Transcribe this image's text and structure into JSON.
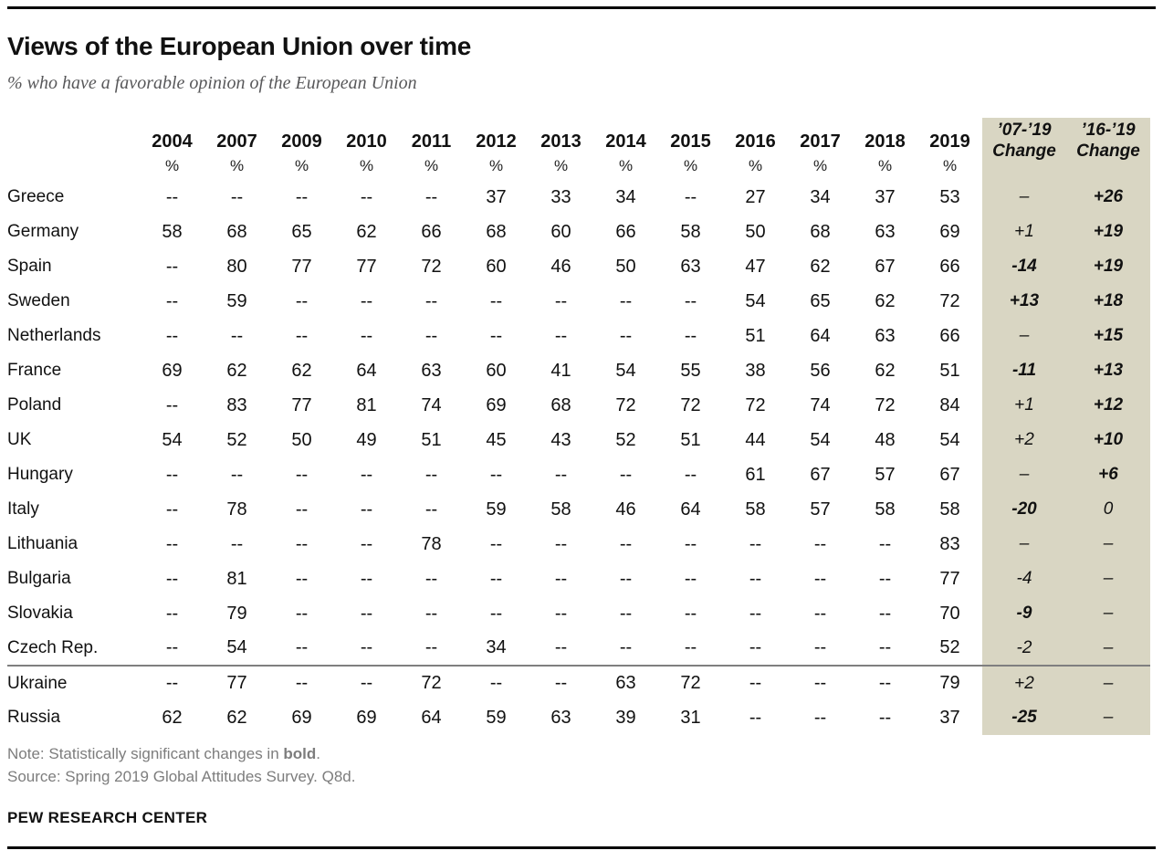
{
  "header": {
    "title": "Views of the European Union over time",
    "subtitle": "% who have a favorable opinion of the European Union"
  },
  "colors": {
    "highlight_bg": "#d9d6c3",
    "rule": "#000000",
    "divider": "#7f7f7f",
    "muted_text": "#7d7d7d"
  },
  "chart_data": {
    "type": "table",
    "title": "Views of the European Union over time",
    "subtitle": "% who have a favorable opinion of the European Union",
    "unit": "%",
    "year_columns": [
      "2004",
      "2007",
      "2009",
      "2010",
      "2011",
      "2012",
      "2013",
      "2014",
      "2015",
      "2016",
      "2017",
      "2018",
      "2019"
    ],
    "percent_symbol": "%",
    "change_column_labels": [
      "’07-’19\nChange",
      "’16-’19\nChange"
    ],
    "rows": [
      {
        "country": "Greece",
        "values": [
          "--",
          "--",
          "--",
          "--",
          "--",
          "37",
          "33",
          "34",
          "--",
          "27",
          "34",
          "37",
          "53"
        ],
        "change_07_19": {
          "text": "–",
          "bold": false
        },
        "change_16_19": {
          "text": "+26",
          "bold": true
        },
        "divider_above": false
      },
      {
        "country": "Germany",
        "values": [
          "58",
          "68",
          "65",
          "62",
          "66",
          "68",
          "60",
          "66",
          "58",
          "50",
          "68",
          "63",
          "69"
        ],
        "change_07_19": {
          "text": "+1",
          "bold": false
        },
        "change_16_19": {
          "text": "+19",
          "bold": true
        },
        "divider_above": false
      },
      {
        "country": "Spain",
        "values": [
          "--",
          "80",
          "77",
          "77",
          "72",
          "60",
          "46",
          "50",
          "63",
          "47",
          "62",
          "67",
          "66"
        ],
        "change_07_19": {
          "text": "-14",
          "bold": true
        },
        "change_16_19": {
          "text": "+19",
          "bold": true
        },
        "divider_above": false
      },
      {
        "country": "Sweden",
        "values": [
          "--",
          "59",
          "--",
          "--",
          "--",
          "--",
          "--",
          "--",
          "--",
          "54",
          "65",
          "62",
          "72"
        ],
        "change_07_19": {
          "text": "+13",
          "bold": true
        },
        "change_16_19": {
          "text": "+18",
          "bold": true
        },
        "divider_above": false
      },
      {
        "country": "Netherlands",
        "values": [
          "--",
          "--",
          "--",
          "--",
          "--",
          "--",
          "--",
          "--",
          "--",
          "51",
          "64",
          "63",
          "66"
        ],
        "change_07_19": {
          "text": "–",
          "bold": false
        },
        "change_16_19": {
          "text": "+15",
          "bold": true
        },
        "divider_above": false
      },
      {
        "country": "France",
        "values": [
          "69",
          "62",
          "62",
          "64",
          "63",
          "60",
          "41",
          "54",
          "55",
          "38",
          "56",
          "62",
          "51"
        ],
        "change_07_19": {
          "text": "-11",
          "bold": true
        },
        "change_16_19": {
          "text": "+13",
          "bold": true
        },
        "divider_above": false
      },
      {
        "country": "Poland",
        "values": [
          "--",
          "83",
          "77",
          "81",
          "74",
          "69",
          "68",
          "72",
          "72",
          "72",
          "74",
          "72",
          "84"
        ],
        "change_07_19": {
          "text": "+1",
          "bold": false
        },
        "change_16_19": {
          "text": "+12",
          "bold": true
        },
        "divider_above": false
      },
      {
        "country": "UK",
        "values": [
          "54",
          "52",
          "50",
          "49",
          "51",
          "45",
          "43",
          "52",
          "51",
          "44",
          "54",
          "48",
          "54"
        ],
        "change_07_19": {
          "text": "+2",
          "bold": false
        },
        "change_16_19": {
          "text": "+10",
          "bold": true
        },
        "divider_above": false
      },
      {
        "country": "Hungary",
        "values": [
          "--",
          "--",
          "--",
          "--",
          "--",
          "--",
          "--",
          "--",
          "--",
          "61",
          "67",
          "57",
          "67"
        ],
        "change_07_19": {
          "text": "–",
          "bold": false
        },
        "change_16_19": {
          "text": "+6",
          "bold": true
        },
        "divider_above": false
      },
      {
        "country": "Italy",
        "values": [
          "--",
          "78",
          "--",
          "--",
          "--",
          "59",
          "58",
          "46",
          "64",
          "58",
          "57",
          "58",
          "58"
        ],
        "change_07_19": {
          "text": "-20",
          "bold": true
        },
        "change_16_19": {
          "text": "0",
          "bold": false
        },
        "divider_above": false
      },
      {
        "country": "Lithuania",
        "values": [
          "--",
          "--",
          "--",
          "--",
          "78",
          "--",
          "--",
          "--",
          "--",
          "--",
          "--",
          "--",
          "83"
        ],
        "change_07_19": {
          "text": "–",
          "bold": false
        },
        "change_16_19": {
          "text": "–",
          "bold": false
        },
        "divider_above": false
      },
      {
        "country": "Bulgaria",
        "values": [
          "--",
          "81",
          "--",
          "--",
          "--",
          "--",
          "--",
          "--",
          "--",
          "--",
          "--",
          "--",
          "77"
        ],
        "change_07_19": {
          "text": "-4",
          "bold": false
        },
        "change_16_19": {
          "text": "–",
          "bold": false
        },
        "divider_above": false
      },
      {
        "country": "Slovakia",
        "values": [
          "--",
          "79",
          "--",
          "--",
          "--",
          "--",
          "--",
          "--",
          "--",
          "--",
          "--",
          "--",
          "70"
        ],
        "change_07_19": {
          "text": "-9",
          "bold": true
        },
        "change_16_19": {
          "text": "–",
          "bold": false
        },
        "divider_above": false
      },
      {
        "country": "Czech Rep.",
        "values": [
          "--",
          "54",
          "--",
          "--",
          "--",
          "34",
          "--",
          "--",
          "--",
          "--",
          "--",
          "--",
          "52"
        ],
        "change_07_19": {
          "text": "-2",
          "bold": false
        },
        "change_16_19": {
          "text": "–",
          "bold": false
        },
        "divider_above": false
      },
      {
        "country": "Ukraine",
        "values": [
          "--",
          "77",
          "--",
          "--",
          "72",
          "--",
          "--",
          "63",
          "72",
          "--",
          "--",
          "--",
          "79"
        ],
        "change_07_19": {
          "text": "+2",
          "bold": false
        },
        "change_16_19": {
          "text": "–",
          "bold": false
        },
        "divider_above": true
      },
      {
        "country": "Russia",
        "values": [
          "62",
          "62",
          "69",
          "69",
          "64",
          "59",
          "63",
          "39",
          "31",
          "--",
          "--",
          "--",
          "37"
        ],
        "change_07_19": {
          "text": "-25",
          "bold": true
        },
        "change_16_19": {
          "text": "–",
          "bold": false
        },
        "divider_above": false
      }
    ]
  },
  "footer": {
    "note_prefix": "Note: Statistically significant changes in ",
    "note_bold": "bold",
    "note_suffix": ".",
    "source": "Source: Spring 2019 Global Attitudes Survey. Q8d.",
    "brand": "PEW RESEARCH CENTER"
  }
}
